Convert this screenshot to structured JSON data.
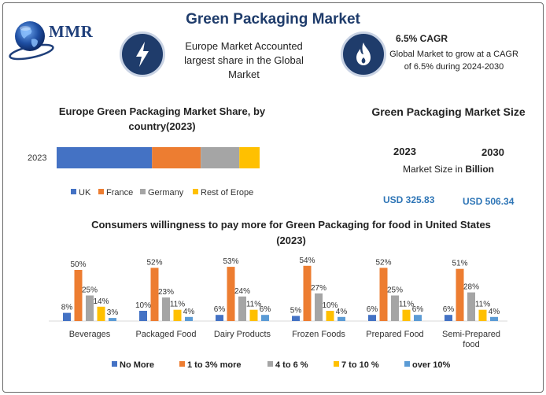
{
  "header": {
    "title": "Green Packaging Market",
    "logo_text": "MMR"
  },
  "info_cards": [
    {
      "icon": "lightning-icon",
      "text": "Europe Market Accounted largest share in the Global Market"
    },
    {
      "icon": "flame-icon",
      "heading": "6.5% CAGR",
      "text": "Global Market to grow at a CAGR of 6.5% during 2024-2030"
    }
  ],
  "market_size": {
    "title": "Green Packaging Market Size",
    "year_start": "2023",
    "year_end": "2030",
    "label_prefix": "Market Size in ",
    "label_unit": "Billion",
    "value_start": "USD 325.83",
    "value_end": "USD 506.34"
  },
  "colors": {
    "uk": "#4472c4",
    "france": "#ed7d31",
    "germany": "#a5a5a5",
    "rest": "#ffc000",
    "over10": "#5b9bd5",
    "title_navy": "#1f3c6b",
    "usd_blue": "#2e75b6"
  },
  "chart_data": [
    {
      "type": "bar",
      "orientation": "horizontal",
      "stacked": true,
      "title": "Europe Green Packaging Market Share, by country(2023)",
      "categories": [
        "2023"
      ],
      "series": [
        {
          "name": "UK",
          "values": [
            47
          ],
          "color": "#4472c4"
        },
        {
          "name": "France",
          "values": [
            24
          ],
          "color": "#ed7d31"
        },
        {
          "name": "Germany",
          "values": [
            19
          ],
          "color": "#a5a5a5"
        },
        {
          "name": "Rest of Erope",
          "values": [
            10
          ],
          "color": "#ffc000"
        }
      ],
      "legend": "bottom"
    },
    {
      "type": "bar",
      "title": "Consumers willingness to pay more for Green Packaging for food in United States (2023)",
      "categories": [
        "Beverages",
        "Packaged Food",
        "Dairy Products",
        "Frozen Foods",
        "Prepared Food",
        "Semi-Prepared food"
      ],
      "series": [
        {
          "name": "No More",
          "values": [
            8,
            10,
            6,
            5,
            6,
            6
          ],
          "color": "#4472c4"
        },
        {
          "name": "1 to 3% more",
          "values": [
            50,
            52,
            53,
            54,
            52,
            51
          ],
          "color": "#ed7d31"
        },
        {
          "name": "4 to 6 %",
          "values": [
            25,
            23,
            24,
            27,
            25,
            28
          ],
          "color": "#a5a5a5"
        },
        {
          "name": "7 to 10 %",
          "values": [
            14,
            11,
            11,
            10,
            11,
            11
          ],
          "color": "#ffc000"
        },
        {
          "name": "over 10%",
          "values": [
            3,
            4,
            6,
            4,
            6,
            4
          ],
          "color": "#5b9bd5"
        }
      ],
      "value_suffix": "%",
      "legend": "bottom"
    }
  ]
}
